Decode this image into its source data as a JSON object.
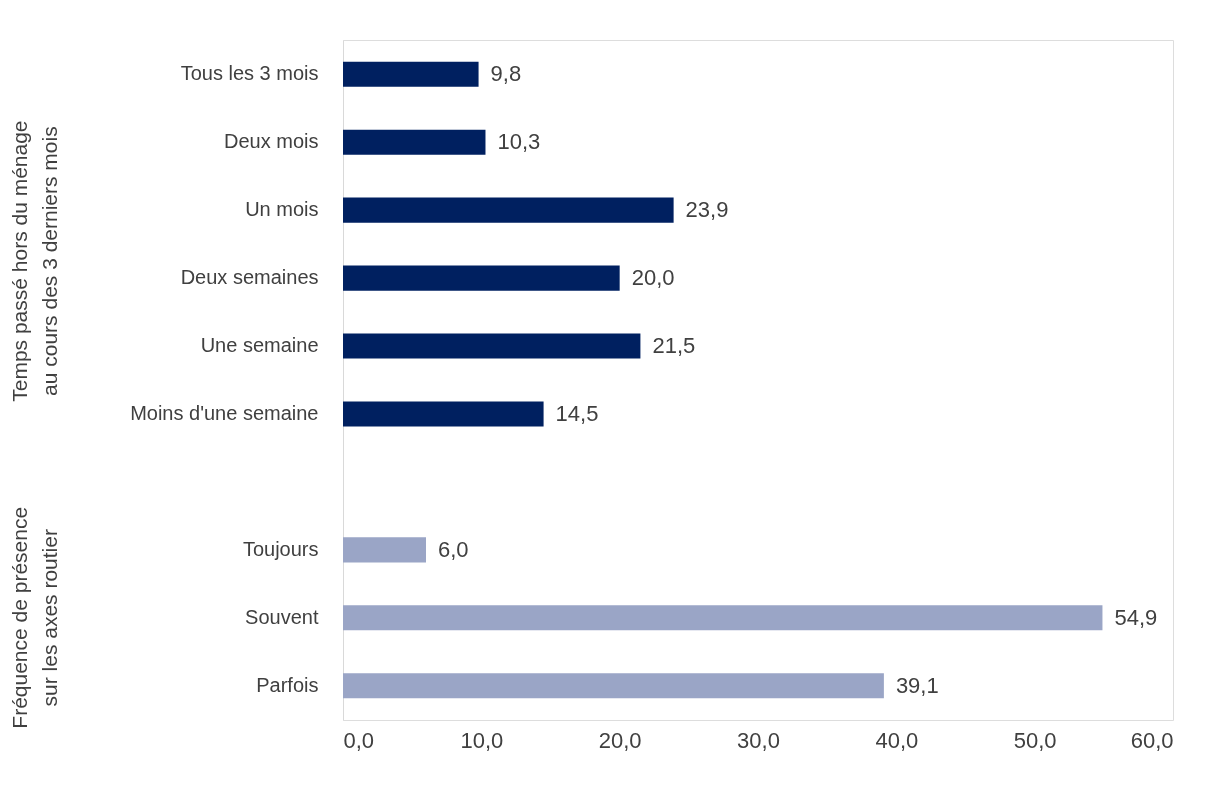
{
  "chart_data": {
    "type": "bar",
    "orientation": "horizontal",
    "categories": [
      "Tous les 3 mois",
      "Deux mois",
      "Un mois",
      "Deux semaines",
      "Une semaine",
      "Moins d'une semaine",
      null,
      "Toujours",
      "Souvent",
      "Parfois"
    ],
    "series": [
      {
        "color": "#002060",
        "values": [
          9.8,
          10.3,
          23.9,
          20.0,
          21.5,
          14.5,
          null,
          null,
          null,
          null
        ],
        "value_labels": [
          "9,8",
          "10,3",
          "23,9",
          "20,0",
          "21,5",
          "14,5",
          null,
          null,
          null,
          null
        ]
      },
      {
        "color": "#9aa5c6",
        "values": [
          null,
          null,
          null,
          null,
          null,
          null,
          null,
          6.0,
          54.9,
          39.1
        ],
        "value_labels": [
          null,
          null,
          null,
          null,
          null,
          null,
          null,
          "6,0",
          "54,9",
          "39,1"
        ]
      }
    ],
    "xlim": [
      0,
      60
    ],
    "xticks": [
      {
        "value": 0,
        "label": "0,0"
      },
      {
        "value": 10,
        "label": "10,0"
      },
      {
        "value": 20,
        "label": "20,0"
      },
      {
        "value": 30,
        "label": "30,0"
      },
      {
        "value": 40,
        "label": "40,0"
      },
      {
        "value": 50,
        "label": "50,0"
      },
      {
        "value": 60,
        "label": "60,0"
      }
    ],
    "annotations": [
      "Temps passé hors du ménage au cours des 3 derniers mois",
      "Fréquence de présence sur les axes routier"
    ],
    "grid": false,
    "legend": false
  }
}
